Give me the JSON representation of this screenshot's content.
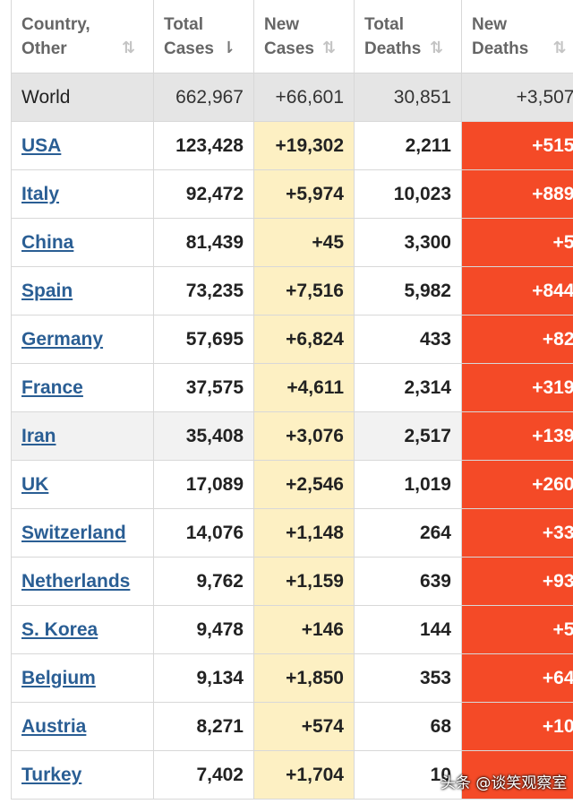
{
  "table": {
    "headers": [
      {
        "label": "Country,\nOther",
        "sort": "⇅",
        "active": false
      },
      {
        "label": "Total\nCases",
        "sort": "⇂",
        "active": true
      },
      {
        "label": "New\nCases",
        "sort": "⇅",
        "active": false
      },
      {
        "label": "Total\nDeaths",
        "sort": "⇅",
        "active": false
      },
      {
        "label": "New\nDeaths",
        "sort": "⇅",
        "active": false
      }
    ],
    "world": {
      "country": "World",
      "total_cases": "662,967",
      "new_cases": "+66,601",
      "total_deaths": "30,851",
      "new_deaths": "+3,507"
    },
    "rows": [
      {
        "country": "USA",
        "total_cases": "123,428",
        "new_cases": "+19,302",
        "total_deaths": "2,211",
        "new_deaths": "+515"
      },
      {
        "country": "Italy",
        "total_cases": "92,472",
        "new_cases": "+5,974",
        "total_deaths": "10,023",
        "new_deaths": "+889"
      },
      {
        "country": "China",
        "total_cases": "81,439",
        "new_cases": "+45",
        "total_deaths": "3,300",
        "new_deaths": "+5"
      },
      {
        "country": "Spain",
        "total_cases": "73,235",
        "new_cases": "+7,516",
        "total_deaths": "5,982",
        "new_deaths": "+844"
      },
      {
        "country": "Germany",
        "total_cases": "57,695",
        "new_cases": "+6,824",
        "total_deaths": "433",
        "new_deaths": "+82"
      },
      {
        "country": "France",
        "total_cases": "37,575",
        "new_cases": "+4,611",
        "total_deaths": "2,314",
        "new_deaths": "+319"
      },
      {
        "country": "Iran",
        "total_cases": "35,408",
        "new_cases": "+3,076",
        "total_deaths": "2,517",
        "new_deaths": "+139"
      },
      {
        "country": "UK",
        "total_cases": "17,089",
        "new_cases": "+2,546",
        "total_deaths": "1,019",
        "new_deaths": "+260"
      },
      {
        "country": "Switzerland",
        "total_cases": "14,076",
        "new_cases": "+1,148",
        "total_deaths": "264",
        "new_deaths": "+33"
      },
      {
        "country": "Netherlands",
        "total_cases": "9,762",
        "new_cases": "+1,159",
        "total_deaths": "639",
        "new_deaths": "+93"
      },
      {
        "country": "S. Korea",
        "total_cases": "9,478",
        "new_cases": "+146",
        "total_deaths": "144",
        "new_deaths": "+5"
      },
      {
        "country": "Belgium",
        "total_cases": "9,134",
        "new_cases": "+1,850",
        "total_deaths": "353",
        "new_deaths": "+64"
      },
      {
        "country": "Austria",
        "total_cases": "8,271",
        "new_cases": "+574",
        "total_deaths": "68",
        "new_deaths": "+10"
      },
      {
        "country": "Turkey",
        "total_cases": "7,402",
        "new_cases": "+1,704",
        "total_deaths": "10",
        "new_deaths": ""
      }
    ]
  },
  "watermark": "头条 @谈笑观察室",
  "colors": {
    "new_cases_bg": "#fdf0c3",
    "new_deaths_bg": "#f44a27",
    "link": "#2a5e94",
    "world_bg": "#e5e5e5"
  }
}
